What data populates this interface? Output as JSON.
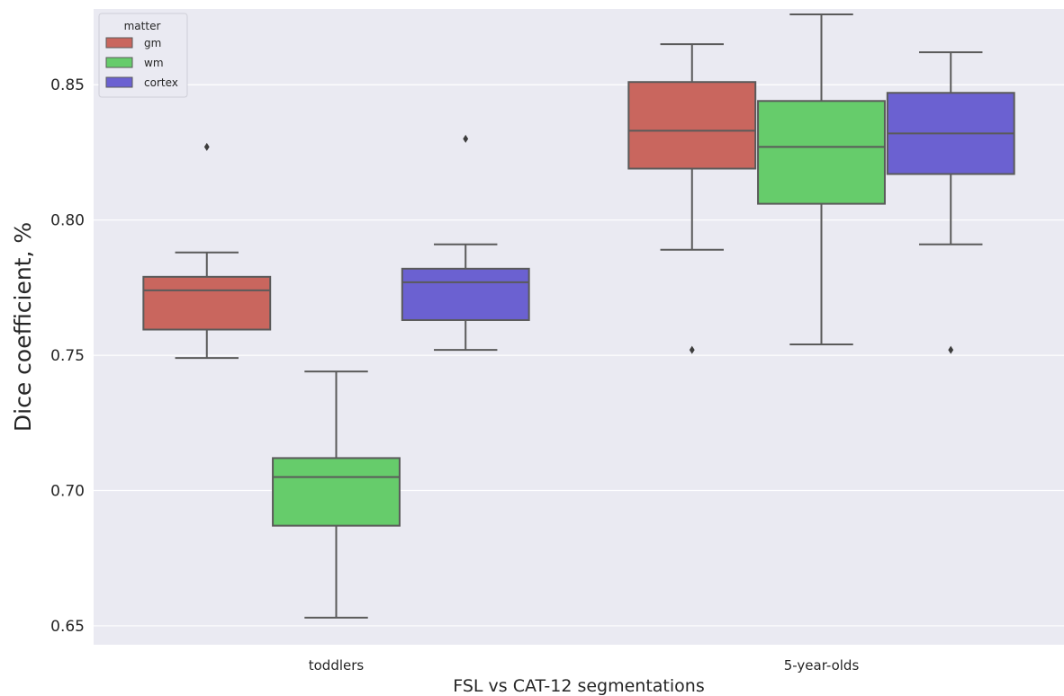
{
  "chart_data": {
    "type": "box",
    "xlabel": "FSL vs CAT-12 segmentations",
    "ylabel": "Dice coefficient, %",
    "categories": [
      "toddlers",
      "5-year-olds"
    ],
    "ylim": [
      0.643,
      0.878
    ],
    "yticks": [
      0.65,
      0.7,
      0.75,
      0.8,
      0.85
    ],
    "ytick_labels": [
      "0.65",
      "0.70",
      "0.75",
      "0.80",
      "0.85"
    ],
    "grid": true,
    "legend": {
      "title": "matter",
      "position": "top-left"
    },
    "series": [
      {
        "name": "gm",
        "color": "#c9665e",
        "boxes": [
          {
            "whisker_low": 0.749,
            "q1": 0.7595,
            "median": 0.774,
            "q3": 0.779,
            "whisker_high": 0.788,
            "outliers": [
              0.827
            ]
          },
          {
            "whisker_low": 0.789,
            "q1": 0.819,
            "median": 0.833,
            "q3": 0.851,
            "whisker_high": 0.865,
            "outliers": [
              0.752
            ]
          }
        ]
      },
      {
        "name": "wm",
        "color": "#66cc6b",
        "boxes": [
          {
            "whisker_low": 0.653,
            "q1": 0.687,
            "median": 0.705,
            "q3": 0.712,
            "whisker_high": 0.744,
            "outliers": []
          },
          {
            "whisker_low": 0.754,
            "q1": 0.806,
            "median": 0.827,
            "q3": 0.844,
            "whisker_high": 0.876,
            "outliers": []
          }
        ]
      },
      {
        "name": "cortex",
        "color": "#6b61d1",
        "boxes": [
          {
            "whisker_low": 0.752,
            "q1": 0.763,
            "median": 0.777,
            "q3": 0.782,
            "whisker_high": 0.791,
            "outliers": [
              0.83
            ]
          },
          {
            "whisker_low": 0.791,
            "q1": 0.817,
            "median": 0.832,
            "q3": 0.847,
            "whisker_high": 0.862,
            "outliers": [
              0.752
            ]
          }
        ]
      }
    ]
  }
}
